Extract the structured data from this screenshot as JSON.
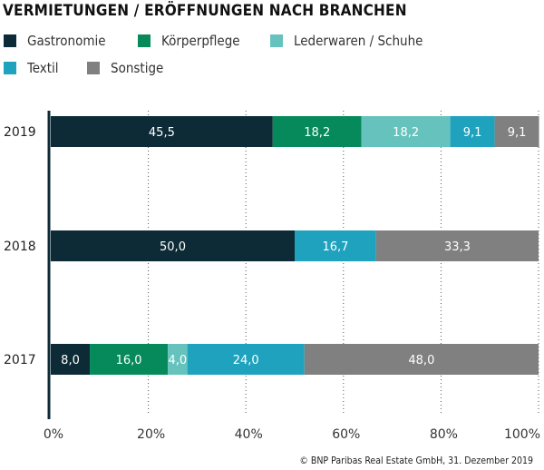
{
  "chart_data": {
    "type": "bar",
    "orientation": "horizontal",
    "stacked": true,
    "title": "VERMIETUNGEN / ERÖFFNUNGEN NACH BRANCHEN",
    "categories": [
      "2019",
      "2018",
      "2017"
    ],
    "series": [
      {
        "name": "Gastronomie",
        "color": "#0d2b36",
        "values": [
          45.5,
          50.0,
          8.0
        ]
      },
      {
        "name": "Körperpflege",
        "color": "#068a5b",
        "values": [
          18.2,
          0,
          16.0
        ]
      },
      {
        "name": "Lederwaren / Schuhe",
        "color": "#66c2bd",
        "values": [
          18.2,
          0,
          4.0
        ]
      },
      {
        "name": "Textil",
        "color": "#1fa2bd",
        "values": [
          9.1,
          16.7,
          24.0
        ]
      },
      {
        "name": "Sonstige",
        "color": "#808080",
        "values": [
          9.1,
          33.3,
          48.0
        ]
      }
    ],
    "xlim": [
      0,
      100
    ],
    "xticks": [
      "0%",
      "20%",
      "40%",
      "60%",
      "80%",
      "100%"
    ],
    "grid": "vertical dotted",
    "legend": "top-left",
    "xlabel": "",
    "ylabel": ""
  },
  "credit": "© BNP Paribas Real Estate GmbH, 31. Dezember 2019"
}
